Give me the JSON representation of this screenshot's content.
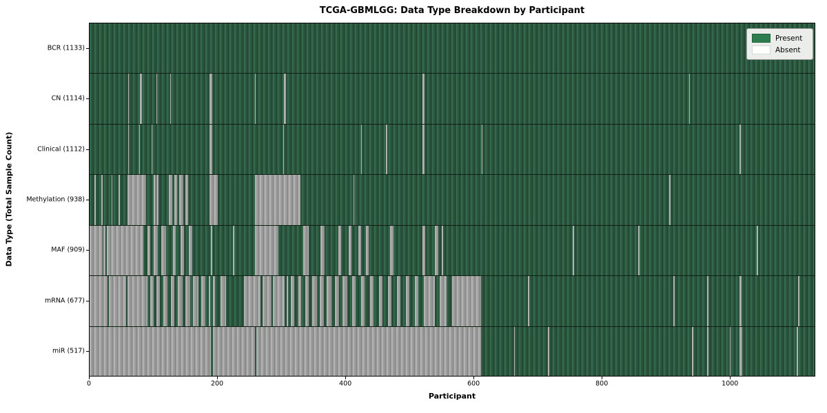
{
  "chart_data": {
    "type": "heatmap",
    "title": "TCGA-GBMLGG: Data Type Breakdown by Participant",
    "xlabel": "Participant",
    "ylabel": "Data Type (Total Sample Count)",
    "xlim": [
      0,
      1133
    ],
    "x_ticks": [
      0,
      200,
      400,
      600,
      800,
      1000
    ],
    "total_participants": 1133,
    "grid": false,
    "legend": {
      "position": "upper right",
      "present_label": "Present",
      "absent_label": "Absent"
    },
    "colors": {
      "present": "#2d7d50",
      "absent": "#ffffff",
      "absent_rendered": "#9c9c9c",
      "row_separator": "#1a241c",
      "legend_background": "#eaedea"
    },
    "rows": [
      {
        "name": "BCR",
        "label": "BCR (1133)",
        "present_count": 1133,
        "absent_runs": []
      },
      {
        "name": "CN",
        "label": "CN (1114)",
        "present_count": 1114,
        "absent_runs": [
          [
            60,
            61
          ],
          [
            79,
            82
          ],
          [
            105,
            106
          ],
          [
            126,
            127
          ],
          [
            187,
            192
          ],
          [
            259,
            260
          ],
          [
            304,
            307
          ],
          [
            520,
            523
          ],
          [
            937,
            938
          ]
        ]
      },
      {
        "name": "Clinical",
        "label": "Clinical (1112)",
        "present_count": 1112,
        "absent_runs": [
          [
            60,
            61
          ],
          [
            78,
            79
          ],
          [
            97,
            98
          ],
          [
            187,
            192
          ],
          [
            303,
            304
          ],
          [
            424,
            425
          ],
          [
            463,
            465
          ],
          [
            520,
            523
          ],
          [
            613,
            614
          ],
          [
            1016,
            1018
          ]
        ]
      },
      {
        "name": "Methylation",
        "label": "Methylation (938)",
        "present_count": 938,
        "absent_runs": [
          [
            8,
            10
          ],
          [
            18,
            20
          ],
          [
            34,
            36
          ],
          [
            45,
            47
          ],
          [
            59,
            88
          ],
          [
            100,
            103
          ],
          [
            105,
            108
          ],
          [
            124,
            129
          ],
          [
            132,
            137
          ],
          [
            140,
            147
          ],
          [
            150,
            154
          ],
          [
            187,
            200
          ],
          [
            258,
            330
          ],
          [
            412,
            414
          ],
          [
            906,
            908
          ]
        ]
      },
      {
        "name": "MAF",
        "label": "MAF (909)",
        "present_count": 909,
        "absent_runs": [
          [
            0,
            20
          ],
          [
            22,
            25
          ],
          [
            27,
            84
          ],
          [
            90,
            95
          ],
          [
            100,
            107
          ],
          [
            112,
            120
          ],
          [
            130,
            135
          ],
          [
            142,
            148
          ],
          [
            155,
            160
          ],
          [
            190,
            192
          ],
          [
            224,
            226
          ],
          [
            258,
            295
          ],
          [
            334,
            342
          ],
          [
            361,
            367
          ],
          [
            389,
            393
          ],
          [
            405,
            409
          ],
          [
            420,
            424
          ],
          [
            432,
            436
          ],
          [
            470,
            475
          ],
          [
            520,
            525
          ],
          [
            540,
            545
          ],
          [
            550,
            552
          ],
          [
            755,
            757
          ],
          [
            857,
            859
          ],
          [
            1043,
            1045
          ]
        ]
      },
      {
        "name": "mRNA",
        "label": "mRNA (677)",
        "present_count": 677,
        "absent_runs": [
          [
            0,
            28
          ],
          [
            30,
            57
          ],
          [
            59,
            90
          ],
          [
            95,
            100
          ],
          [
            104,
            110
          ],
          [
            115,
            122
          ],
          [
            127,
            133
          ],
          [
            138,
            145
          ],
          [
            150,
            157
          ],
          [
            162,
            170
          ],
          [
            175,
            181
          ],
          [
            186,
            188
          ],
          [
            193,
            196
          ],
          [
            205,
            213
          ],
          [
            241,
            267
          ],
          [
            270,
            284
          ],
          [
            287,
            305
          ],
          [
            308,
            310
          ],
          [
            315,
            320
          ],
          [
            326,
            331
          ],
          [
            337,
            343
          ],
          [
            348,
            355
          ],
          [
            360,
            366
          ],
          [
            371,
            378
          ],
          [
            383,
            390
          ],
          [
            395,
            403
          ],
          [
            410,
            416
          ],
          [
            424,
            430
          ],
          [
            438,
            444
          ],
          [
            452,
            458
          ],
          [
            466,
            472
          ],
          [
            480,
            486
          ],
          [
            494,
            500
          ],
          [
            508,
            514
          ],
          [
            522,
            540
          ],
          [
            547,
            558
          ],
          [
            566,
            612
          ],
          [
            685,
            687
          ],
          [
            912,
            914
          ],
          [
            965,
            967
          ],
          [
            1016,
            1019
          ],
          [
            1107,
            1109
          ]
        ]
      },
      {
        "name": "miR",
        "label": "miR (517)",
        "present_count": 517,
        "absent_runs": [
          [
            0,
            190
          ],
          [
            193,
            259
          ],
          [
            261,
            612
          ],
          [
            663,
            665
          ],
          [
            716,
            718
          ],
          [
            941,
            943
          ],
          [
            965,
            967
          ],
          [
            1000,
            1002
          ],
          [
            1016,
            1020
          ],
          [
            1105,
            1107
          ]
        ]
      }
    ]
  }
}
